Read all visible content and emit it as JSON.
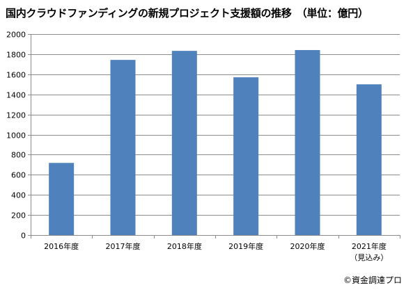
{
  "chart_data": {
    "type": "bar",
    "title": "国内クラウドファンディングの新規プロジェクト支援額の推移　（単位：億円）",
    "categories": [
      "2016年度",
      "2017年度",
      "2018年度",
      "2019年度",
      "2020年度",
      "2021年度"
    ],
    "category_sublabels": [
      "",
      "",
      "",
      "",
      "",
      "（見込み）"
    ],
    "values": [
      718,
      1743,
      1833,
      1570,
      1841,
      1500
    ],
    "ylim": [
      0,
      2000
    ],
    "yticks": [
      0,
      200,
      400,
      600,
      800,
      1000,
      1200,
      1400,
      1600,
      1800,
      2000
    ],
    "xlabel": "",
    "ylabel": "",
    "grid": true,
    "legend": "none",
    "bar_color": "#4f81bd",
    "grid_color": "#8c8c8c",
    "axis_color": "#8c8c8c"
  },
  "footer": {
    "copyright": "©資金調達プロ"
  }
}
